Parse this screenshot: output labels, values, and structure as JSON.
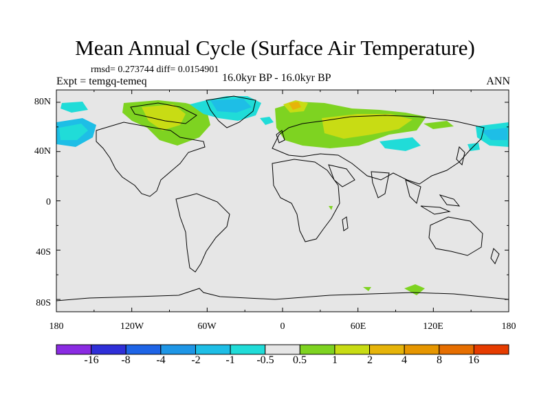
{
  "title": "Mean Annual Cycle (Surface Air Temperature)",
  "stats": "rmsd= 0.273744 diff= 0.0154901",
  "experiment": "Expt = temgq-temeq",
  "period": "16.0kyr BP - 16.0kyr BP",
  "season": "ANN",
  "lat_ticks": [
    "80N",
    "40N",
    "0",
    "40S",
    "80S"
  ],
  "lon_ticks": [
    "180",
    "120W",
    "60W",
    "0",
    "60E",
    "120E",
    "180"
  ],
  "colorbar": {
    "colors": [
      "#8a2be2",
      "#2f2fd8",
      "#1e64e6",
      "#1e96e6",
      "#1ebee6",
      "#20dcd8",
      "#e6e6e6",
      "#7ed321",
      "#c8dc14",
      "#e6b40a",
      "#e69600",
      "#e66e00",
      "#e63c00"
    ],
    "labels": [
      "-16",
      "-8",
      "-4",
      "-2",
      "-1",
      "-0.5",
      "0.5",
      "1",
      "2",
      "4",
      "8",
      "16"
    ]
  },
  "colors": {
    "ocean_bg": "#e6e6e6",
    "cyan_anomaly": "#20dcd8",
    "light_blue_anomaly": "#1ebee6",
    "green_anomaly": "#7ed321",
    "yellow_anomaly": "#c8dc14",
    "orange_anomaly": "#e6b40a"
  }
}
